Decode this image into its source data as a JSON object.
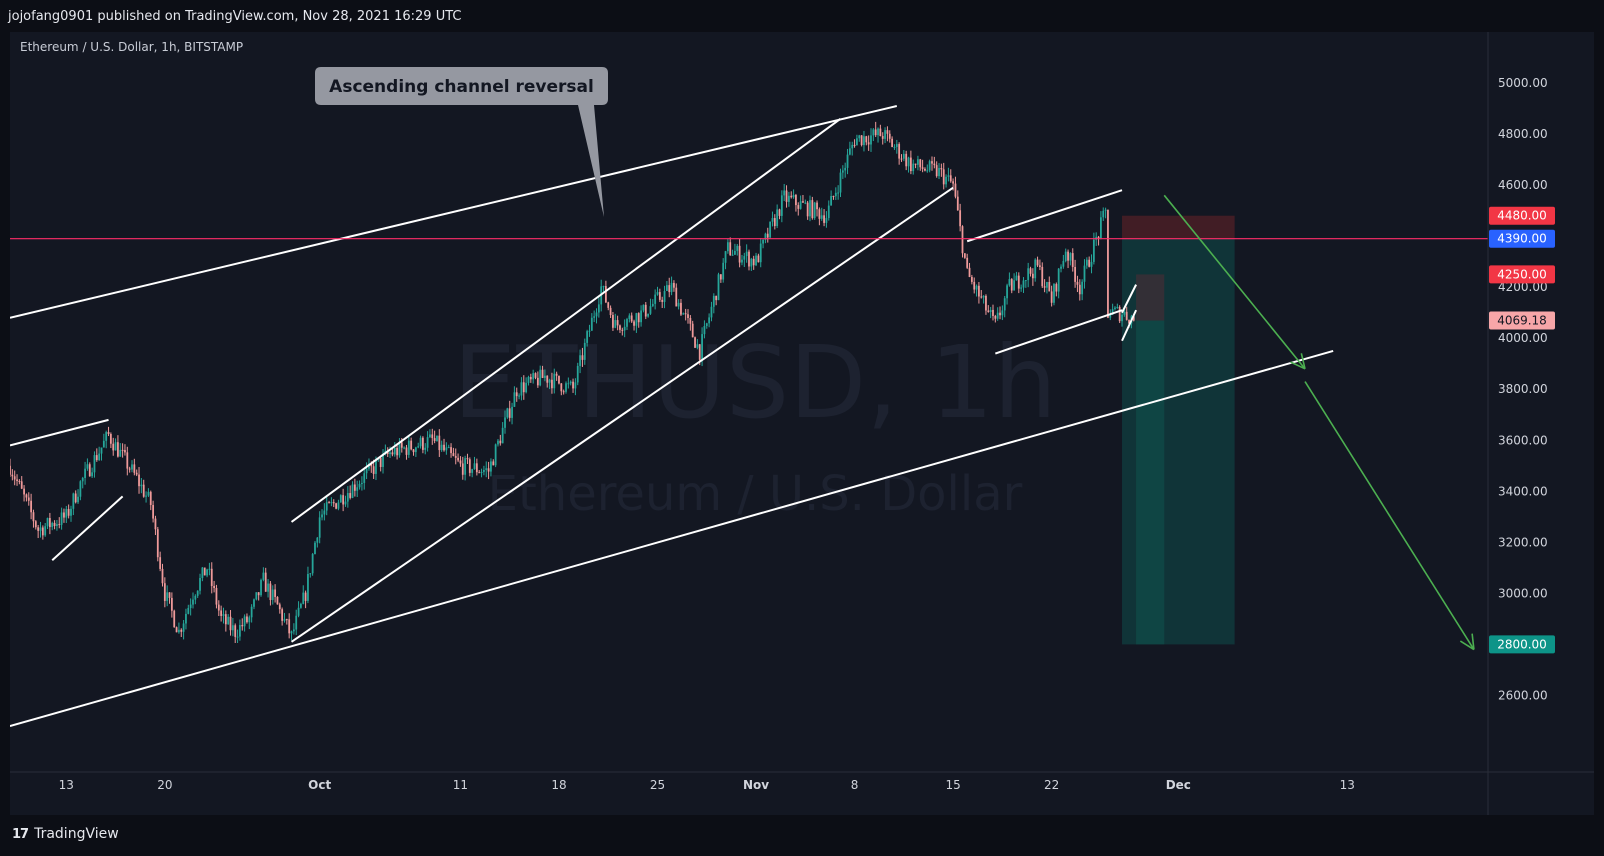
{
  "header": {
    "published_text": "jojofang0901 published on TradingView.com, Nov 28, 2021 16:29 UTC"
  },
  "symbol_line": "Ethereum / U.S. Dollar, 1h, BITSTAMP",
  "watermark": {
    "symbol": "ETHUSD, 1h",
    "name": "Ethereum / U.S. Dollar"
  },
  "annotation": {
    "text": "Ascending channel reversal"
  },
  "footer": {
    "logo_text": "TradingView",
    "logo_icon": "tradingview-logo-icon"
  },
  "colors": {
    "background": "#131722",
    "outer": "#0c0e15",
    "up": "#26a69a",
    "down": "#ef9a9a",
    "trendline": "#ffffff",
    "horizontal_line": "#ff2d6a",
    "arrow": "#4caf50",
    "stop_zone": "#4a1e26",
    "target_zone": "#0e4d4a",
    "label_red": "#f23645",
    "label_blue": "#2962ff",
    "label_teal": "#0d9488",
    "label_pink": "#f7a6a8"
  },
  "chart_data": {
    "type": "candlestick",
    "title": "Ethereum / U.S. Dollar, 1h, BITSTAMP",
    "x_axis": {
      "type": "date",
      "range": [
        "2021-09-09",
        "2021-12-23"
      ],
      "tick_labels": [
        {
          "date": "2021-09-13",
          "label": "13"
        },
        {
          "date": "2021-09-20",
          "label": "20"
        },
        {
          "date": "2021-10-01",
          "label": "Oct",
          "bold": true
        },
        {
          "date": "2021-10-11",
          "label": "11"
        },
        {
          "date": "2021-10-18",
          "label": "18"
        },
        {
          "date": "2021-10-25",
          "label": "25"
        },
        {
          "date": "2021-11-01",
          "label": "Nov",
          "bold": true
        },
        {
          "date": "2021-11-08",
          "label": "8"
        },
        {
          "date": "2021-11-15",
          "label": "15"
        },
        {
          "date": "2021-11-22",
          "label": "22"
        },
        {
          "date": "2021-12-01",
          "label": "Dec",
          "bold": true
        },
        {
          "date": "2021-12-13",
          "label": "13"
        }
      ]
    },
    "y_axis": {
      "range": [
        2300,
        5200
      ],
      "ticks": [
        2600,
        2800,
        3000,
        3200,
        3400,
        3600,
        3800,
        4000,
        4200,
        4400,
        4600,
        4800,
        5000
      ],
      "tick_labels": [
        "2600.00",
        "2800.00",
        "3000.00",
        "3200.00",
        "3400.00",
        "3600.00",
        "3800.00",
        "4000.00",
        "4200.00",
        "4400.00",
        "4600.00",
        "4800.00",
        "5000.00"
      ]
    },
    "price_path": [
      [
        "2021-09-09",
        3500
      ],
      [
        "2021-09-11",
        3250
      ],
      [
        "2021-09-13",
        3300
      ],
      [
        "2021-09-14",
        3430
      ],
      [
        "2021-09-16",
        3620
      ],
      [
        "2021-09-18",
        3450
      ],
      [
        "2021-09-19",
        3350
      ],
      [
        "2021-09-20",
        3000
      ],
      [
        "2021-09-21",
        2850
      ],
      [
        "2021-09-22",
        3000
      ],
      [
        "2021-09-23",
        3100
      ],
      [
        "2021-09-24",
        2900
      ],
      [
        "2021-09-25",
        2850
      ],
      [
        "2021-09-26",
        2900
      ],
      [
        "2021-09-27",
        3050
      ],
      [
        "2021-09-28",
        2950
      ],
      [
        "2021-09-29",
        2830
      ],
      [
        "2021-09-30",
        3000
      ],
      [
        "2021-10-01",
        3300
      ],
      [
        "2021-10-03",
        3400
      ],
      [
        "2021-10-06",
        3550
      ],
      [
        "2021-10-09",
        3600
      ],
      [
        "2021-10-11",
        3500
      ],
      [
        "2021-10-13",
        3480
      ],
      [
        "2021-10-15",
        3800
      ],
      [
        "2021-10-17",
        3850
      ],
      [
        "2021-10-19",
        3800
      ],
      [
        "2021-10-21",
        4200
      ],
      [
        "2021-10-22",
        4050
      ],
      [
        "2021-10-24",
        4100
      ],
      [
        "2021-10-26",
        4200
      ],
      [
        "2021-10-28",
        3950
      ],
      [
        "2021-10-30",
        4350
      ],
      [
        "2021-11-01",
        4300
      ],
      [
        "2021-11-03",
        4550
      ],
      [
        "2021-11-06",
        4480
      ],
      [
        "2021-11-08",
        4780
      ],
      [
        "2021-11-10",
        4800
      ],
      [
        "2021-11-12",
        4680
      ],
      [
        "2021-11-14",
        4650
      ],
      [
        "2021-11-15",
        4600
      ],
      [
        "2021-11-16",
        4250
      ],
      [
        "2021-11-18",
        4050
      ],
      [
        "2021-11-19",
        4200
      ],
      [
        "2021-11-21",
        4280
      ],
      [
        "2021-11-22",
        4150
      ],
      [
        "2021-11-23",
        4350
      ],
      [
        "2021-11-24",
        4200
      ],
      [
        "2021-11-26",
        4520
      ],
      [
        "2021-11-26",
        4100
      ],
      [
        "2021-11-27",
        4100
      ],
      [
        "2021-11-28",
        4069.18
      ]
    ],
    "trendlines": [
      {
        "name": "outer-channel-top",
        "from": [
          "2021-09-09",
          4080
        ],
        "to": [
          "2021-11-11",
          4910
        ]
      },
      {
        "name": "outer-channel-bottom",
        "from": [
          "2021-09-09",
          2480
        ],
        "to": [
          "2021-12-12",
          3950
        ]
      },
      {
        "name": "inner-channel-top",
        "from": [
          "2021-09-29",
          3280
        ],
        "to": [
          "2021-11-07",
          4860
        ]
      },
      {
        "name": "inner-channel-bottom",
        "from": [
          "2021-09-29",
          2810
        ],
        "to": [
          "2021-11-15",
          4590
        ]
      },
      {
        "name": "flag-top-left",
        "from": [
          "2021-09-09",
          3580
        ],
        "to": [
          "2021-09-16",
          3680
        ]
      },
      {
        "name": "flag-bottom-left",
        "from": [
          "2021-09-12",
          3130
        ],
        "to": [
          "2021-09-17",
          3380
        ]
      },
      {
        "name": "wedge-top",
        "from": [
          "2021-11-16",
          4380
        ],
        "to": [
          "2021-11-27",
          4580
        ]
      },
      {
        "name": "wedge-bottom",
        "from": [
          "2021-11-18",
          3940
        ],
        "to": [
          "2021-11-27",
          4110
        ]
      },
      {
        "name": "bear-flag-top",
        "from": [
          "2021-11-27",
          4100
        ],
        "to": [
          "2021-11-28",
          4210
        ]
      },
      {
        "name": "bear-flag-bottom",
        "from": [
          "2021-11-27",
          3990
        ],
        "to": [
          "2021-11-28",
          4110
        ]
      }
    ],
    "horizontal_line": {
      "price": 4390
    },
    "short_position": {
      "start": "2021-11-27",
      "end": "2021-12-05",
      "entry": 4390,
      "stop": 4480,
      "target": 2800,
      "secondary_box": {
        "start": "2021-11-28",
        "end": "2021-11-30",
        "top": 4250,
        "bottom": 4069.18
      }
    },
    "arrows": [
      {
        "name": "arrow-1",
        "from": [
          "2021-11-30",
          4560
        ],
        "to": [
          "2021-12-10",
          3880
        ]
      },
      {
        "name": "arrow-2",
        "from": [
          "2021-12-10",
          3830
        ],
        "to": [
          "2021-12-22",
          2780
        ]
      }
    ],
    "price_labels": [
      {
        "name": "stop-price-label",
        "value": "4480.00",
        "color": "#f23645"
      },
      {
        "name": "entry-price-label",
        "value": "4390.00",
        "color": "#2962ff"
      },
      {
        "name": "secondary-price-label",
        "value": "4250.00",
        "color": "#f23645"
      },
      {
        "name": "last-price-label",
        "value": "4069.18",
        "color": "#f7a6a8"
      },
      {
        "name": "target-price-label",
        "value": "2800.00",
        "color": "#0d9488"
      }
    ]
  }
}
